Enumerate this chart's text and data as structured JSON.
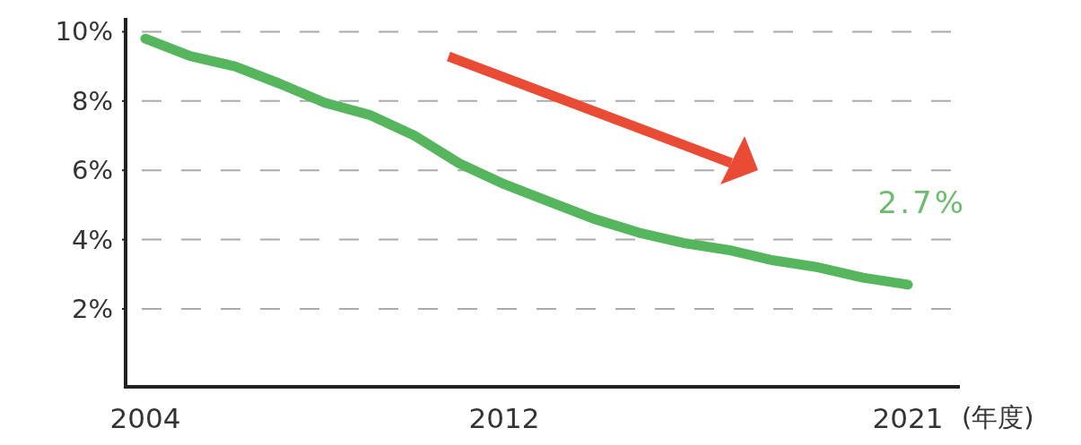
{
  "chart_data": {
    "type": "line",
    "xlabel": "(年度)",
    "x": [
      2004,
      2005,
      2006,
      2007,
      2008,
      2009,
      2010,
      2011,
      2012,
      2013,
      2014,
      2015,
      2016,
      2017,
      2018,
      2019,
      2020,
      2021
    ],
    "series": [
      {
        "color": "#55b65e",
        "values": [
          9.8,
          9.3,
          9.0,
          8.5,
          7.95,
          7.6,
          7.0,
          6.2,
          5.6,
          5.1,
          4.6,
          4.2,
          3.9,
          3.7,
          3.4,
          3.2,
          2.9,
          2.7
        ]
      }
    ],
    "xlim": [
      2003.56,
      2022.16
    ],
    "ylim": [
      -0.25,
      10.4
    ],
    "xticks": [
      2004,
      2012,
      2021
    ],
    "yticks": [
      {
        "value": 2,
        "label": "2%"
      },
      {
        "value": 4,
        "label": "4%"
      },
      {
        "value": 6,
        "label": "6%"
      },
      {
        "value": 8,
        "label": "8%"
      },
      {
        "value": 10,
        "label": "10%"
      }
    ],
    "annotations": [
      {
        "text": "2.7%",
        "x": 2021,
        "y": 2.7
      }
    ],
    "grid": "y",
    "marker": "none",
    "line_style": "solid"
  }
}
